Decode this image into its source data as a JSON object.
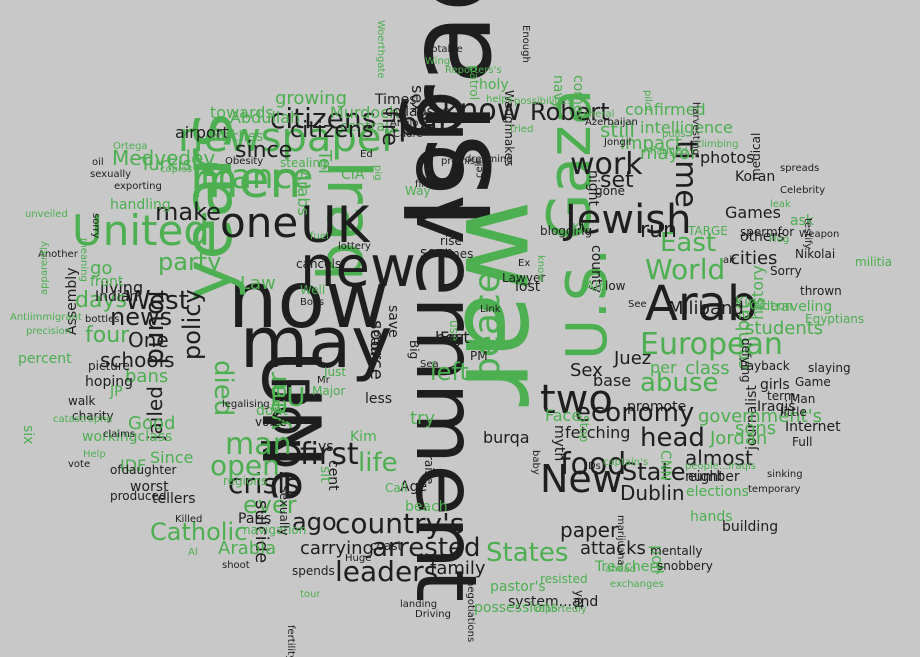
{
  "palette": {
    "dark": "#1e1e1e",
    "green": "#4caf50",
    "background": "#c8c8c8"
  },
  "words": [
    "Israel",
    "government",
    "war",
    "now",
    "may",
    "UN",
    "years",
    "Iraq",
    "new",
    "UK",
    "Gaza",
    "Pope",
    "U.S.",
    "Arab",
    "newspaper",
    "Jewish",
    "men",
    "one",
    "United",
    "France",
    "two",
    "New",
    "European",
    "part",
    "citizens",
    "know",
    "work",
    "time",
    "first",
    "food",
    "country's",
    "arrested",
    "States",
    "leaders",
    "crisis",
    "World",
    "East",
    "peace",
    "abuse",
    "left",
    "life",
    "economy",
    "head",
    "State",
    "Dublin",
    "policy",
    "found",
    "West",
    "news",
    "party",
    "make",
    "Medvedev",
    "Turkish",
    "four",
    "days",
    "One",
    "schools",
    "jailed",
    "bans",
    "Catholic",
    "man",
    "open",
    "ever",
    "suicide",
    "ago",
    "carrying",
    "family",
    "paper",
    "attacks",
    "Arabia",
    "died",
    "year",
    "EU",
    "still",
    "set",
    "run",
    "mayor",
    "class",
    "students",
    "combat",
    "history",
    "King",
    "Gideon",
    "Games",
    "cities",
    "others",
    "Koran",
    "photos",
    "night",
    "gone",
    "medical",
    "Internet",
    "journalist",
    "Robert",
    "navy",
    "comes",
    "intelligence",
    "impact",
    "confirmed",
    "Murdoch",
    "central",
    "collapses",
    "Times",
    "sex",
    "fire",
    "citizens",
    "growing",
    "towards",
    "Abdullah",
    "airport",
    "witches",
    "since",
    "Law",
    "go",
    "living",
    "Indian",
    "front",
    "picture",
    "hoping",
    "walk",
    "Good",
    "Since",
    "IDF",
    "worst",
    "tellers",
    "produced",
    "ofdaughter",
    "workingclass",
    "charity",
    "percent",
    "Assembly",
    "Miliband",
    "government's",
    "sons",
    "Jordan",
    "almost",
    "number",
    "elections",
    "CNN",
    "hands",
    "building",
    "poll",
    "eight",
    "Juez",
    "Sex",
    "base",
    "per",
    "girls",
    "term",
    "Man",
    "Sorry",
    "Payback",
    "Iraqis",
    "little",
    "Full",
    "defying",
    "spermfor",
    "ask",
    "Nikolai",
    "thrown",
    "traveling",
    "Egyptians",
    "militia",
    "slaying",
    "Game",
    "promote",
    "fetching",
    "Face",
    "try",
    "best",
    "source",
    "near",
    "save",
    "Kim",
    "vs",
    "use",
    "seen",
    "rise",
    "times",
    "Fry",
    "PM",
    "Big",
    "Sea",
    "raise",
    "Age",
    "beach",
    "coast",
    "tour",
    "spends",
    "Huge",
    "landing",
    "Driving",
    "fertility",
    "system...and",
    "possessions",
    "pastor's",
    "reportedly",
    "negotiations",
    "Treachery",
    "yet",
    "resisted",
    "exchanges",
    "ahead",
    "mentally",
    "snobbery",
    "temporary",
    "sinking",
    "people...Iraqis",
    "captain's",
    "IDs",
    "marijuana",
    "baby",
    "myth",
    "Stop",
    "lost",
    "Link",
    "low",
    "county",
    "Air",
    "shoot",
    "Al",
    "navigation",
    "regions",
    "Killed",
    "Paris",
    "Sexually",
    "dont",
    "voice",
    "less",
    "cent",
    "sit",
    "Call",
    "vote",
    "Help",
    "catastrophe",
    "legalising",
    "potable",
    "Wing",
    "Reporters's",
    "Woerthgate",
    "Enough",
    "Waughnakes",
    "possibilities",
    "General",
    "Azerbaijan",
    "Jongil",
    "pilot",
    "pulls",
    "flagged",
    "climbing",
    "harvesting",
    "promise",
    "dreaming",
    "Anglo",
    "Cadre",
    "patrol",
    "holy",
    "helps",
    "tried",
    "cell",
    "Way",
    "pig",
    "Ed",
    "Obesity",
    "stealing",
    "copies",
    "oil",
    "Ortega",
    "sexually",
    "exporting",
    "handling",
    "sorry",
    "unveiled",
    "Another",
    "Antiimmigrant",
    "precision",
    "apparently",
    "meaning",
    "bottles",
    "claims",
    "six",
    "lottery",
    "cancels",
    "Boys",
    "Well",
    "JP",
    "Mr",
    "Just",
    "Major",
    "fuel",
    "air",
    "Hug",
    "leak",
    "Celebrity",
    "Weapon",
    "testify",
    "spreads",
    "Lawyer",
    "blogging",
    "Ex",
    "Kill",
    "TARGE",
    "See",
    "Tel",
    "Arabs",
    "CIA",
    "burqa",
    "fires",
    "know",
    "Bed",
    "Gaza"
  ]
}
